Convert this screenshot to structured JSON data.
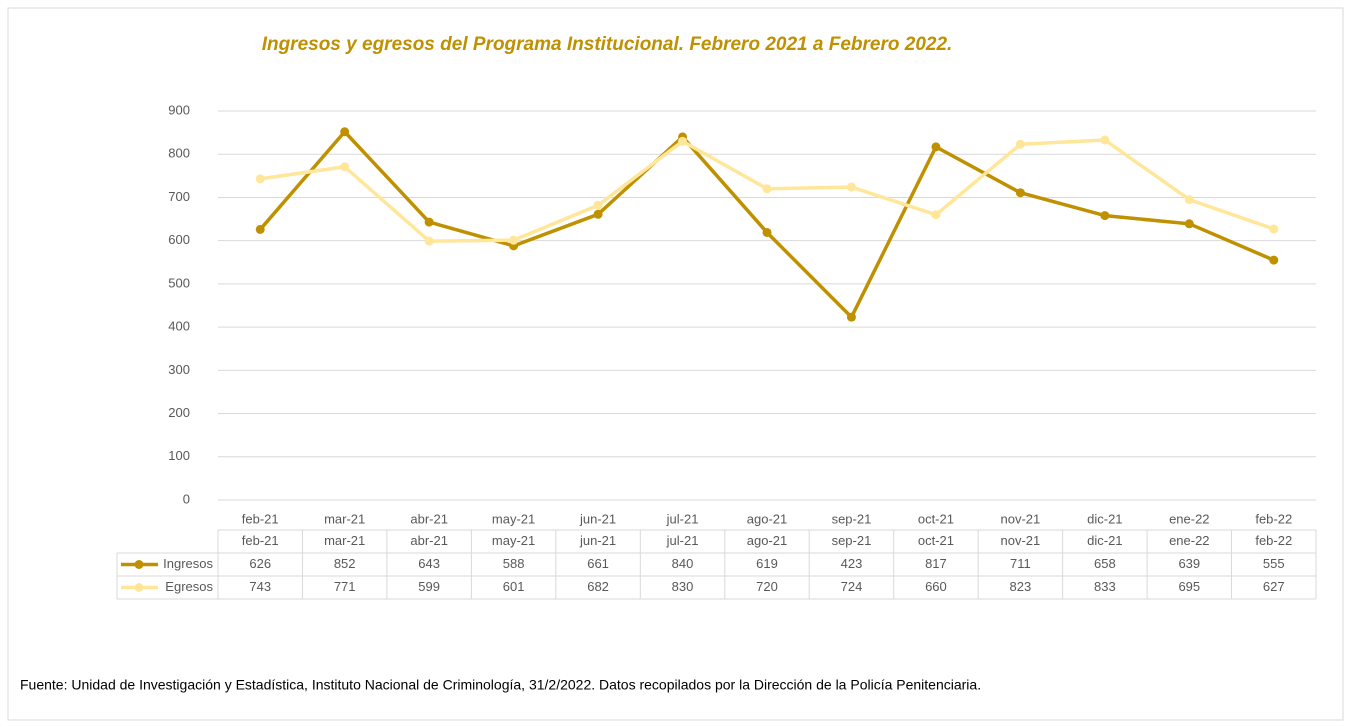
{
  "chart_data": {
    "type": "line",
    "title": "Ingresos y egresos del Programa Institucional.  Febrero 2021 a Febrero 2022.",
    "categories": [
      "feb-21",
      "mar-21",
      "abr-21",
      "may-21",
      "jun-21",
      "jul-21",
      "ago-21",
      "sep-21",
      "oct-21",
      "nov-21",
      "dic-21",
      "ene-22",
      "feb-22"
    ],
    "series": [
      {
        "name": "Ingresos",
        "color": "#bf9000",
        "values": [
          626,
          852,
          643,
          588,
          661,
          840,
          619,
          423,
          817,
          711,
          658,
          639,
          555
        ]
      },
      {
        "name": "Egresos",
        "color": "#ffe699",
        "values": [
          743,
          771,
          599,
          601,
          682,
          830,
          720,
          724,
          660,
          823,
          833,
          695,
          627
        ]
      }
    ],
    "ylim": [
      0,
      900
    ],
    "yticks": [
      0,
      100,
      200,
      300,
      400,
      500,
      600,
      700,
      800,
      900
    ],
    "grid": true,
    "source": "Fuente: Unidad de Investigación y Estadística, Instituto Nacional de Criminología, 31/2/2022. Datos recopilados por la Dirección de la Policía Penitenciaria."
  }
}
